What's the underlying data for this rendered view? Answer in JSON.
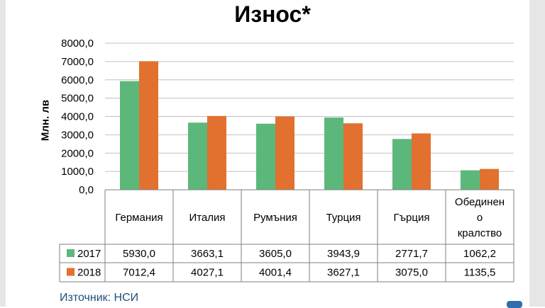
{
  "chart_data": {
    "type": "bar",
    "title": "Износ*",
    "ylabel": "Млн. лв",
    "xlabel": "",
    "ylim": [
      0,
      8000
    ],
    "yticks": [
      "0,0",
      "1000,0",
      "2000,0",
      "3000,0",
      "4000,0",
      "5000,0",
      "6000,0",
      "7000,0",
      "8000,0"
    ],
    "grid": true,
    "legend": "data-table",
    "categories": [
      "Германия",
      "Италия",
      "Румъния",
      "Турция",
      "Гърция",
      "Обединено кралство"
    ],
    "category_lines": [
      [
        "Германия"
      ],
      [
        "Италия"
      ],
      [
        "Румъния"
      ],
      [
        "Турция"
      ],
      [
        "Гърция"
      ],
      [
        "Обединен",
        "о",
        "кралство"
      ]
    ],
    "series": [
      {
        "name": "2017",
        "color": "#5cb87a",
        "values": [
          5930.0,
          3663.1,
          3605.0,
          3943.9,
          2771.7,
          1062.2
        ],
        "labels": [
          "5930,0",
          "3663,1",
          "3605,0",
          "3943,9",
          "2771,7",
          "1062,2"
        ]
      },
      {
        "name": "2018",
        "color": "#e2702f",
        "values": [
          7012.4,
          4027.1,
          4001.4,
          3627.1,
          3075.0,
          1135.5
        ],
        "labels": [
          "7012,4",
          "4027,1",
          "4001,4",
          "3627,1",
          "3075,0",
          "1135,5"
        ]
      }
    ]
  },
  "source": "Източник: НСИ"
}
